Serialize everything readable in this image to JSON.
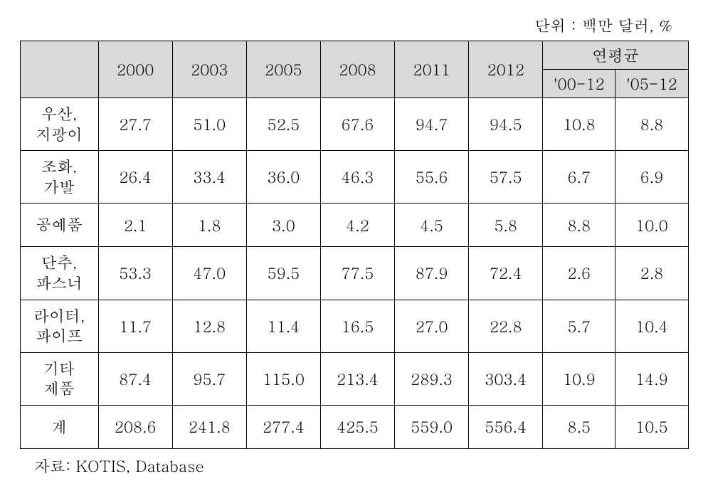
{
  "unit_label": "단위 : 백만 달러, %",
  "source_label": "자료: KOTIS, Database",
  "table": {
    "header": {
      "blank": "",
      "years": [
        "2000",
        "2003",
        "2005",
        "2008",
        "2011",
        "2012"
      ],
      "avg_group": "연평균",
      "avg_sub": [
        "'00-12",
        "'05-12"
      ]
    },
    "rows": [
      {
        "label": "우산,\n지팡이",
        "vals": [
          "27.7",
          "51.0",
          "52.5",
          "67.6",
          "94.7",
          "94.5",
          "10.8",
          "8.8"
        ]
      },
      {
        "label": "조화,\n가발",
        "vals": [
          "26.4",
          "33.4",
          "36.0",
          "46.3",
          "55.6",
          "57.5",
          "6.7",
          "6.9"
        ]
      },
      {
        "label": "공예품",
        "vals": [
          "2.1",
          "1.8",
          "3.0",
          "4.2",
          "4.5",
          "5.8",
          "8.8",
          "10.0"
        ]
      },
      {
        "label": "단추,\n파스너",
        "vals": [
          "53.3",
          "47.0",
          "59.5",
          "77.5",
          "87.9",
          "72.4",
          "2.6",
          "2.8"
        ]
      },
      {
        "label": "라이터,\n파이프",
        "vals": [
          "11.7",
          "12.8",
          "11.4",
          "16.5",
          "27.0",
          "22.8",
          "5.7",
          "10.4"
        ]
      },
      {
        "label": "기타\n제품",
        "vals": [
          "87.4",
          "95.7",
          "115.0",
          "213.4",
          "289.3",
          "303.4",
          "10.9",
          "14.9"
        ]
      },
      {
        "label": "계",
        "vals": [
          "208.6",
          "241.8",
          "277.4",
          "425.5",
          "559.0",
          "556.4",
          "8.5",
          "10.5"
        ]
      }
    ],
    "colors": {
      "header_bg": "#d9d9d9",
      "border": "#000000",
      "text": "#000000",
      "body_bg": "#ffffff"
    },
    "font": {
      "family": "Batang, serif",
      "size_pt": 16
    }
  }
}
